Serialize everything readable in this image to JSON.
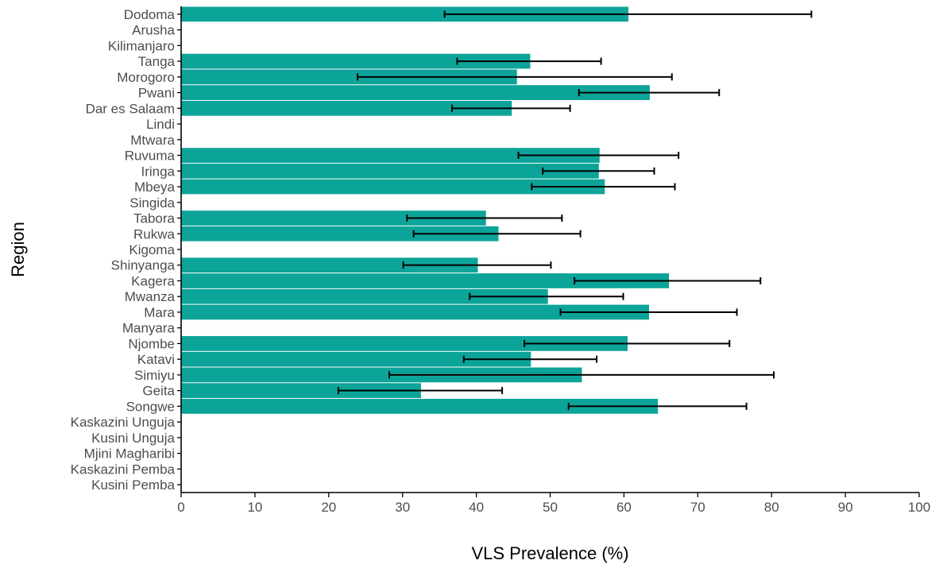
{
  "chart_data": {
    "type": "bar",
    "orientation": "horizontal",
    "xlabel": "VLS Prevalence (%)",
    "ylabel": "Region",
    "xlim": [
      0,
      100
    ],
    "xticks": [
      "0",
      "10",
      "20",
      "30",
      "40",
      "50",
      "60",
      "70",
      "80",
      "90",
      "100"
    ],
    "grid": false,
    "bar_color": "#0ca498",
    "error_bar_color": "#000000",
    "categories": [
      "Dodoma",
      "Arusha",
      "Kilimanjaro",
      "Tanga",
      "Morogoro",
      "Pwani",
      "Dar es Salaam",
      "Lindi",
      "Mtwara",
      "Ruvuma",
      "Iringa",
      "Mbeya",
      "Singida",
      "Tabora",
      "Rukwa",
      "Kigoma",
      "Shinyanga",
      "Kagera",
      "Mwanza",
      "Mara",
      "Manyara",
      "Njombe",
      "Katavi",
      "Simiyu",
      "Geita",
      "Songwe",
      "Kaskazini Unguja",
      "Kusini Unguja",
      "Mjini Magharibi",
      "Kaskazini Pemba",
      "Kusini Pemba"
    ],
    "values": [
      60.6,
      null,
      null,
      47.3,
      45.5,
      63.5,
      44.8,
      null,
      null,
      56.7,
      56.6,
      57.4,
      null,
      41.3,
      43.0,
      null,
      40.2,
      66.1,
      49.7,
      63.4,
      null,
      60.5,
      47.4,
      54.3,
      32.5,
      64.6,
      null,
      null,
      null,
      null,
      null
    ],
    "ci_lower": [
      35.7,
      null,
      null,
      37.4,
      23.9,
      53.9,
      36.7,
      null,
      null,
      45.7,
      49.0,
      47.5,
      null,
      30.6,
      31.5,
      null,
      30.1,
      53.3,
      39.1,
      51.4,
      null,
      46.5,
      38.3,
      28.2,
      21.3,
      52.5,
      null,
      null,
      null,
      null,
      null
    ],
    "ci_upper": [
      85.4,
      null,
      null,
      56.9,
      66.5,
      72.9,
      52.7,
      null,
      null,
      67.4,
      64.1,
      66.9,
      null,
      51.6,
      54.1,
      null,
      50.1,
      78.5,
      59.9,
      75.3,
      null,
      74.3,
      56.3,
      80.3,
      43.5,
      76.6,
      null,
      null,
      null,
      null,
      null
    ]
  }
}
